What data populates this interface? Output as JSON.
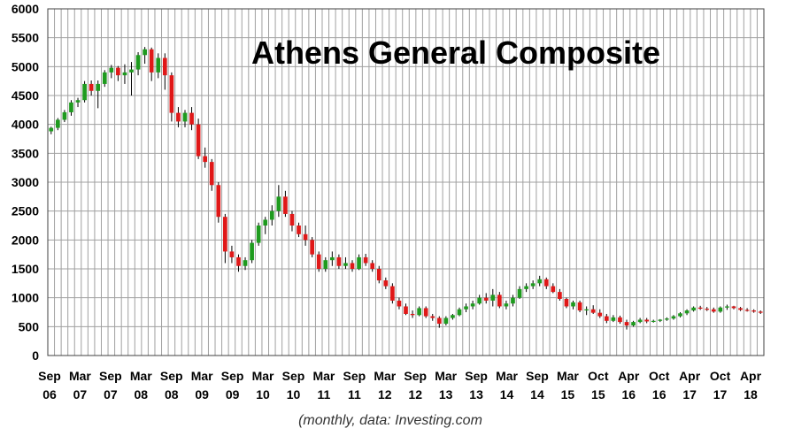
{
  "chart_data": {
    "type": "candlestick",
    "title": "Athens General Composite",
    "subtitle": "(monthly, data: Investing.com",
    "xlabel": "",
    "ylabel": "",
    "ylim": [
      0,
      6000
    ],
    "yticks": [
      0,
      500,
      1000,
      1500,
      2000,
      2500,
      3000,
      3500,
      4000,
      4500,
      5000,
      5500,
      6000
    ],
    "grid": true,
    "legend": "none",
    "colors": {
      "up": "#1e9b1e",
      "down": "#e01818",
      "wick": "#000000",
      "grid": "#a0a0a0",
      "border": "#404040"
    },
    "x_tick_labels": [
      [
        "Sep",
        "06"
      ],
      [
        "Mar",
        "07"
      ],
      [
        "Sep",
        "07"
      ],
      [
        "Mar",
        "08"
      ],
      [
        "Sep",
        "08"
      ],
      [
        "Mar",
        "09"
      ],
      [
        "Sep",
        "09"
      ],
      [
        "Mar",
        "10"
      ],
      [
        "Sep",
        "10"
      ],
      [
        "Mar",
        "11"
      ],
      [
        "Sep",
        "11"
      ],
      [
        "Mar",
        "12"
      ],
      [
        "Sep",
        "12"
      ],
      [
        "Mar",
        "13"
      ],
      [
        "Sep",
        "13"
      ],
      [
        "Mar",
        "14"
      ],
      [
        "Sep",
        "14"
      ],
      [
        "Mar",
        "15"
      ],
      [
        "Oct",
        "15"
      ],
      [
        "Apr",
        "16"
      ],
      [
        "Oct",
        "16"
      ],
      [
        "Apr",
        "17"
      ],
      [
        "Oct",
        "17"
      ],
      [
        "Apr",
        "18"
      ]
    ],
    "start_month": "2006-09",
    "ohlc": [
      [
        3880,
        3960,
        3830,
        3940
      ],
      [
        3940,
        4110,
        3900,
        4080
      ],
      [
        4080,
        4250,
        4040,
        4210
      ],
      [
        4210,
        4420,
        4150,
        4380
      ],
      [
        4380,
        4460,
        4300,
        4420
      ],
      [
        4420,
        4750,
        4380,
        4700
      ],
      [
        4700,
        4760,
        4500,
        4580
      ],
      [
        4580,
        4760,
        4280,
        4700
      ],
      [
        4700,
        4940,
        4650,
        4900
      ],
      [
        4900,
        5030,
        4800,
        4980
      ],
      [
        4980,
        5010,
        4750,
        4850
      ],
      [
        4850,
        5040,
        4700,
        4900
      ],
      [
        4900,
        5080,
        4500,
        4950
      ],
      [
        4950,
        5250,
        4850,
        5200
      ],
      [
        5200,
        5340,
        5050,
        5300
      ],
      [
        5300,
        5330,
        4750,
        4900
      ],
      [
        4900,
        5230,
        4800,
        5150
      ],
      [
        5150,
        5230,
        4600,
        4850
      ],
      [
        4850,
        4900,
        4050,
        4200
      ],
      [
        4200,
        4300,
        3950,
        4050
      ],
      [
        4050,
        4250,
        3950,
        4200
      ],
      [
        4200,
        4300,
        3900,
        4000
      ],
      [
        4000,
        4100,
        3400,
        3450
      ],
      [
        3450,
        3600,
        3250,
        3350
      ],
      [
        3350,
        3400,
        2850,
        2950
      ],
      [
        2950,
        3000,
        2300,
        2400
      ],
      [
        2400,
        2450,
        1600,
        1800
      ],
      [
        1800,
        1900,
        1600,
        1700
      ],
      [
        1700,
        1750,
        1450,
        1550
      ],
      [
        1550,
        1700,
        1480,
        1650
      ],
      [
        1650,
        2000,
        1600,
        1950
      ],
      [
        1950,
        2300,
        1900,
        2250
      ],
      [
        2250,
        2400,
        2100,
        2350
      ],
      [
        2350,
        2600,
        2250,
        2500
      ],
      [
        2500,
        2950,
        2400,
        2750
      ],
      [
        2750,
        2850,
        2400,
        2450
      ],
      [
        2450,
        2500,
        2150,
        2250
      ],
      [
        2250,
        2300,
        2050,
        2100
      ],
      [
        2100,
        2250,
        1900,
        2000
      ],
      [
        2000,
        2050,
        1700,
        1750
      ],
      [
        1750,
        1800,
        1450,
        1500
      ],
      [
        1500,
        1700,
        1450,
        1650
      ],
      [
        1650,
        1800,
        1550,
        1700
      ],
      [
        1700,
        1750,
        1500,
        1550
      ],
      [
        1550,
        1700,
        1500,
        1600
      ],
      [
        1600,
        1650,
        1450,
        1500
      ],
      [
        1500,
        1750,
        1480,
        1700
      ],
      [
        1700,
        1760,
        1550,
        1600
      ],
      [
        1600,
        1650,
        1450,
        1500
      ],
      [
        1500,
        1550,
        1250,
        1300
      ],
      [
        1300,
        1350,
        1150,
        1200
      ],
      [
        1200,
        1250,
        900,
        950
      ],
      [
        950,
        1000,
        800,
        850
      ],
      [
        850,
        900,
        700,
        720
      ],
      [
        720,
        780,
        650,
        700
      ],
      [
        700,
        850,
        680,
        820
      ],
      [
        820,
        850,
        650,
        680
      ],
      [
        680,
        720,
        600,
        650
      ],
      [
        650,
        680,
        480,
        550
      ],
      [
        550,
        680,
        520,
        650
      ],
      [
        650,
        720,
        620,
        700
      ],
      [
        700,
        830,
        680,
        800
      ],
      [
        800,
        900,
        750,
        850
      ],
      [
        850,
        950,
        800,
        900
      ],
      [
        900,
        1050,
        880,
        1000
      ],
      [
        1000,
        1080,
        900,
        950
      ],
      [
        950,
        1150,
        850,
        1050
      ],
      [
        1050,
        1100,
        820,
        850
      ],
      [
        850,
        950,
        800,
        900
      ],
      [
        900,
        1050,
        850,
        1000
      ],
      [
        1000,
        1200,
        980,
        1150
      ],
      [
        1150,
        1250,
        1100,
        1200
      ],
      [
        1200,
        1300,
        1150,
        1250
      ],
      [
        1250,
        1380,
        1200,
        1320
      ],
      [
        1320,
        1350,
        1150,
        1200
      ],
      [
        1200,
        1250,
        1080,
        1100
      ],
      [
        1100,
        1150,
        950,
        980
      ],
      [
        980,
        1000,
        820,
        850
      ],
      [
        850,
        950,
        800,
        920
      ],
      [
        920,
        950,
        750,
        780
      ],
      [
        780,
        850,
        700,
        800
      ],
      [
        800,
        870,
        720,
        740
      ],
      [
        740,
        800,
        650,
        680
      ],
      [
        680,
        720,
        560,
        600
      ],
      [
        600,
        700,
        580,
        660
      ],
      [
        660,
        690,
        550,
        580
      ],
      [
        580,
        620,
        450,
        520
      ],
      [
        520,
        600,
        500,
        580
      ],
      [
        580,
        650,
        560,
        620
      ],
      [
        620,
        650,
        560,
        590
      ],
      [
        590,
        620,
        570,
        600
      ],
      [
        600,
        630,
        580,
        620
      ],
      [
        620,
        660,
        600,
        640
      ],
      [
        640,
        700,
        620,
        680
      ],
      [
        680,
        750,
        660,
        730
      ],
      [
        730,
        800,
        700,
        780
      ],
      [
        780,
        850,
        760,
        830
      ],
      [
        830,
        860,
        790,
        810
      ],
      [
        810,
        840,
        770,
        800
      ],
      [
        800,
        830,
        740,
        760
      ],
      [
        760,
        850,
        740,
        830
      ],
      [
        830,
        880,
        790,
        850
      ],
      [
        850,
        860,
        800,
        820
      ],
      [
        820,
        840,
        770,
        790
      ],
      [
        790,
        820,
        760,
        780
      ],
      [
        780,
        800,
        740,
        760
      ],
      [
        760,
        780,
        720,
        740
      ]
    ]
  }
}
